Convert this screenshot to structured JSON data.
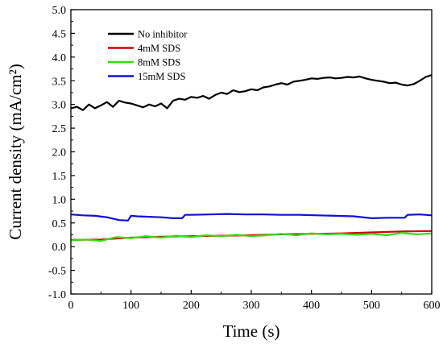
{
  "chart_data": {
    "type": "line",
    "xlabel": "Time (s)",
    "ylabel": "Current density (mA/cm²)",
    "xlim": [
      0,
      600
    ],
    "ylim": [
      -1.0,
      5.0
    ],
    "xticks": [
      "0",
      "100",
      "200",
      "300",
      "400",
      "500",
      "600"
    ],
    "yticks": [
      "-1.0",
      "-0.5",
      "0.0",
      "0.5",
      "1.0",
      "1.5",
      "2.0",
      "2.5",
      "3.0",
      "3.5",
      "4.0",
      "4.5",
      "5.0"
    ],
    "grid": false,
    "legend_position": "top-left",
    "series": [
      {
        "name": "No inhibitor",
        "color": "#000000",
        "x": [
          0,
          10,
          20,
          30,
          40,
          50,
          60,
          70,
          80,
          90,
          100,
          110,
          120,
          130,
          140,
          150,
          160,
          170,
          180,
          190,
          200,
          210,
          220,
          230,
          240,
          250,
          260,
          270,
          280,
          290,
          300,
          310,
          320,
          330,
          340,
          350,
          360,
          370,
          380,
          390,
          400,
          410,
          420,
          430,
          440,
          450,
          460,
          470,
          480,
          490,
          500,
          510,
          520,
          530,
          540,
          550,
          560,
          570,
          580,
          590,
          600
        ],
        "y": [
          2.92,
          2.95,
          2.88,
          3.0,
          2.92,
          2.98,
          3.05,
          2.95,
          3.08,
          3.04,
          3.02,
          2.98,
          2.94,
          3.0,
          2.96,
          3.02,
          2.92,
          3.08,
          3.12,
          3.1,
          3.16,
          3.14,
          3.18,
          3.12,
          3.2,
          3.25,
          3.22,
          3.3,
          3.26,
          3.28,
          3.32,
          3.3,
          3.36,
          3.38,
          3.42,
          3.45,
          3.42,
          3.48,
          3.5,
          3.52,
          3.55,
          3.54,
          3.56,
          3.57,
          3.55,
          3.56,
          3.58,
          3.57,
          3.59,
          3.55,
          3.52,
          3.5,
          3.48,
          3.45,
          3.46,
          3.42,
          3.4,
          3.43,
          3.5,
          3.58,
          3.62
        ]
      },
      {
        "name": "4mM SDS",
        "color": "#d40000",
        "x": [
          0,
          50,
          100,
          150,
          200,
          250,
          300,
          350,
          400,
          450,
          500,
          550,
          600
        ],
        "y": [
          0.14,
          0.15,
          0.19,
          0.21,
          0.22,
          0.23,
          0.24,
          0.26,
          0.27,
          0.28,
          0.3,
          0.32,
          0.33
        ]
      },
      {
        "name": "8mM SDS",
        "color": "#33dd11",
        "x": [
          0,
          25,
          50,
          75,
          100,
          125,
          150,
          175,
          200,
          225,
          250,
          275,
          300,
          325,
          350,
          375,
          400,
          425,
          450,
          475,
          500,
          525,
          550,
          575,
          600
        ],
        "y": [
          0.13,
          0.15,
          0.12,
          0.2,
          0.18,
          0.22,
          0.19,
          0.23,
          0.2,
          0.24,
          0.22,
          0.25,
          0.22,
          0.24,
          0.27,
          0.24,
          0.28,
          0.26,
          0.27,
          0.25,
          0.27,
          0.24,
          0.29,
          0.26,
          0.28
        ]
      },
      {
        "name": "15mM SDS",
        "color": "#1010d0",
        "x": [
          0,
          20,
          40,
          60,
          80,
          95,
          100,
          110,
          130,
          150,
          170,
          185,
          190,
          200,
          230,
          260,
          290,
          320,
          350,
          380,
          410,
          440,
          470,
          500,
          530,
          555,
          560,
          580,
          600
        ],
        "y": [
          0.68,
          0.66,
          0.65,
          0.62,
          0.56,
          0.55,
          0.65,
          0.64,
          0.63,
          0.62,
          0.6,
          0.6,
          0.67,
          0.67,
          0.68,
          0.69,
          0.68,
          0.68,
          0.67,
          0.67,
          0.66,
          0.65,
          0.64,
          0.6,
          0.61,
          0.61,
          0.67,
          0.68,
          0.66
        ]
      }
    ]
  }
}
